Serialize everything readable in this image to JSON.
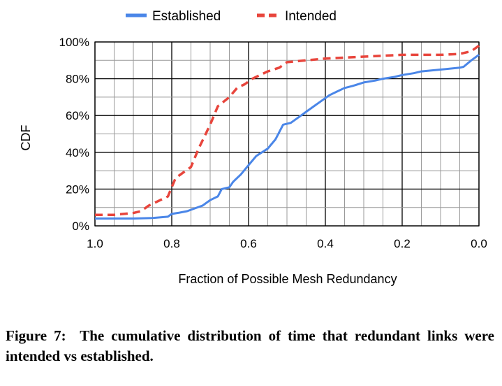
{
  "chart_data": {
    "type": "line",
    "xlabel": "Fraction of Possible Mesh Redundancy",
    "ylabel": "CDF",
    "x_reversed": true,
    "xlim": [
      1.0,
      0.0
    ],
    "ylim": [
      0,
      100
    ],
    "x_ticks": [
      "1.0",
      "0.8",
      "0.6",
      "0.4",
      "0.2",
      "0.0"
    ],
    "y_ticks": [
      "0%",
      "20%",
      "40%",
      "60%",
      "80%",
      "100%"
    ],
    "grid": true,
    "legend_position": "top",
    "series": [
      {
        "name": "Established",
        "color": "#4a86e8",
        "dash": "solid",
        "points": [
          [
            1.0,
            4
          ],
          [
            0.95,
            4
          ],
          [
            0.9,
            4
          ],
          [
            0.85,
            4.3
          ],
          [
            0.81,
            5
          ],
          [
            0.8,
            6.5
          ],
          [
            0.78,
            7.2
          ],
          [
            0.76,
            8
          ],
          [
            0.74,
            9.5
          ],
          [
            0.72,
            11
          ],
          [
            0.7,
            14
          ],
          [
            0.68,
            16
          ],
          [
            0.67,
            20
          ],
          [
            0.65,
            21
          ],
          [
            0.64,
            24
          ],
          [
            0.62,
            28
          ],
          [
            0.6,
            33
          ],
          [
            0.58,
            38
          ],
          [
            0.55,
            42
          ],
          [
            0.53,
            47
          ],
          [
            0.51,
            55
          ],
          [
            0.49,
            56
          ],
          [
            0.47,
            59
          ],
          [
            0.45,
            62
          ],
          [
            0.43,
            65
          ],
          [
            0.41,
            68
          ],
          [
            0.39,
            71
          ],
          [
            0.37,
            73
          ],
          [
            0.35,
            75
          ],
          [
            0.33,
            76
          ],
          [
            0.3,
            78
          ],
          [
            0.27,
            79
          ],
          [
            0.25,
            80
          ],
          [
            0.22,
            81
          ],
          [
            0.2,
            82
          ],
          [
            0.17,
            83
          ],
          [
            0.15,
            84
          ],
          [
            0.1,
            85
          ],
          [
            0.05,
            86
          ],
          [
            0.04,
            86.5
          ],
          [
            0.02,
            90
          ],
          [
            0.0,
            93
          ]
        ]
      },
      {
        "name": "Intended",
        "color": "#e8453c",
        "dash": "dashed",
        "points": [
          [
            1.0,
            6
          ],
          [
            0.95,
            6
          ],
          [
            0.9,
            7
          ],
          [
            0.88,
            8
          ],
          [
            0.86,
            11
          ],
          [
            0.84,
            13
          ],
          [
            0.81,
            16
          ],
          [
            0.79,
            26
          ],
          [
            0.77,
            29
          ],
          [
            0.75,
            32
          ],
          [
            0.73,
            42
          ],
          [
            0.7,
            55
          ],
          [
            0.68,
            65
          ],
          [
            0.65,
            70
          ],
          [
            0.63,
            75
          ],
          [
            0.61,
            77
          ],
          [
            0.59,
            80
          ],
          [
            0.57,
            82
          ],
          [
            0.55,
            84
          ],
          [
            0.52,
            86
          ],
          [
            0.5,
            89
          ],
          [
            0.45,
            90
          ],
          [
            0.4,
            91
          ],
          [
            0.35,
            91.5
          ],
          [
            0.3,
            92
          ],
          [
            0.2,
            93
          ],
          [
            0.1,
            93
          ],
          [
            0.05,
            93.5
          ],
          [
            0.02,
            95
          ],
          [
            0.0,
            98
          ]
        ]
      }
    ]
  },
  "caption": {
    "label": "Figure 7:",
    "text": "The cumulative distribution of time that redundant links were intended vs established."
  }
}
